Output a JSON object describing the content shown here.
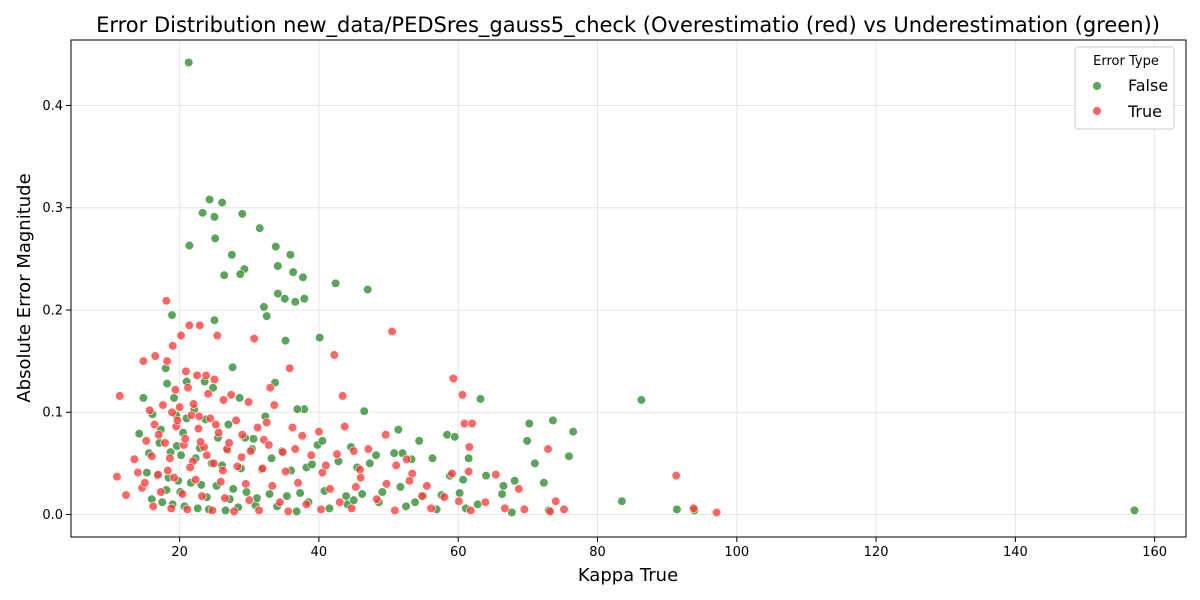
{
  "chart_data": {
    "type": "scatter",
    "title": "Error Distribution new_data/PEDSres_gauss5_check (Overestimatio (red) vs Underestimation (green))",
    "xlabel": "Kappa True",
    "ylabel": "Absolute Error Magnitude",
    "xlim": [
      4.4,
      164.5
    ],
    "ylim": [
      -0.022,
      0.464
    ],
    "xticks": [
      20,
      40,
      60,
      80,
      100,
      120,
      140,
      160
    ],
    "yticks": [
      0.0,
      0.1,
      0.2,
      0.3,
      0.4
    ],
    "xtick_labels": [
      "20",
      "40",
      "60",
      "80",
      "100",
      "120",
      "140",
      "160"
    ],
    "ytick_labels": [
      "0.0",
      "0.1",
      "0.2",
      "0.3",
      "0.4"
    ],
    "grid": true,
    "legend": {
      "title": "Error Type",
      "placement": "top-right",
      "entries": [
        "False",
        "True"
      ]
    },
    "series": [
      {
        "name": "False",
        "color": "#2e8b2e",
        "points": [
          [
            21.3,
            0.442
          ],
          [
            24.3,
            0.308
          ],
          [
            26.1,
            0.305
          ],
          [
            23.3,
            0.295
          ],
          [
            25.0,
            0.291
          ],
          [
            29.0,
            0.294
          ],
          [
            31.5,
            0.28
          ],
          [
            25.1,
            0.27
          ],
          [
            21.4,
            0.263
          ],
          [
            33.8,
            0.262
          ],
          [
            27.5,
            0.254
          ],
          [
            35.9,
            0.254
          ],
          [
            34.1,
            0.243
          ],
          [
            29.3,
            0.24
          ],
          [
            28.7,
            0.235
          ],
          [
            26.4,
            0.234
          ],
          [
            36.3,
            0.237
          ],
          [
            37.7,
            0.232
          ],
          [
            42.4,
            0.226
          ],
          [
            47.0,
            0.22
          ],
          [
            34.1,
            0.216
          ],
          [
            35.1,
            0.211
          ],
          [
            37.9,
            0.211
          ],
          [
            36.6,
            0.208
          ],
          [
            32.1,
            0.203
          ],
          [
            32.5,
            0.194
          ],
          [
            18.9,
            0.195
          ],
          [
            25.0,
            0.19
          ],
          [
            40.1,
            0.173
          ],
          [
            35.2,
            0.17
          ],
          [
            27.6,
            0.144
          ],
          [
            18.0,
            0.143
          ],
          [
            21.0,
            0.13
          ],
          [
            23.6,
            0.13
          ],
          [
            18.2,
            0.128
          ],
          [
            33.7,
            0.129
          ],
          [
            28.6,
            0.114
          ],
          [
            24.8,
            0.124
          ],
          [
            14.8,
            0.114
          ],
          [
            19.2,
            0.114
          ],
          [
            22.1,
            0.103
          ],
          [
            37.9,
            0.103
          ],
          [
            46.5,
            0.101
          ],
          [
            63.2,
            0.113
          ],
          [
            86.3,
            0.112
          ],
          [
            16.1,
            0.098
          ],
          [
            19.5,
            0.097
          ],
          [
            21.0,
            0.094
          ],
          [
            23.7,
            0.093
          ],
          [
            27.0,
            0.088
          ],
          [
            32.3,
            0.096
          ],
          [
            36.9,
            0.103
          ],
          [
            14.2,
            0.079
          ],
          [
            17.3,
            0.083
          ],
          [
            20.5,
            0.08
          ],
          [
            25.5,
            0.075
          ],
          [
            29.4,
            0.075
          ],
          [
            30.6,
            0.074
          ],
          [
            34.7,
            0.062
          ],
          [
            39.8,
            0.068
          ],
          [
            40.5,
            0.072
          ],
          [
            44.6,
            0.066
          ],
          [
            48.2,
            0.058
          ],
          [
            52.0,
            0.06
          ],
          [
            54.4,
            0.072
          ],
          [
            58.4,
            0.078
          ],
          [
            59.5,
            0.076
          ],
          [
            70.2,
            0.089
          ],
          [
            73.6,
            0.092
          ],
          [
            76.5,
            0.081
          ],
          [
            69.9,
            0.072
          ],
          [
            71.0,
            0.05
          ],
          [
            75.9,
            0.057
          ],
          [
            51.4,
            0.083
          ],
          [
            15.6,
            0.06
          ],
          [
            18.7,
            0.061
          ],
          [
            20.2,
            0.058
          ],
          [
            22.3,
            0.055
          ],
          [
            24.6,
            0.05
          ],
          [
            26.1,
            0.048
          ],
          [
            28.8,
            0.045
          ],
          [
            31.8,
            0.044
          ],
          [
            36.0,
            0.043
          ],
          [
            38.2,
            0.046
          ],
          [
            42.8,
            0.052
          ],
          [
            45.5,
            0.046
          ],
          [
            50.8,
            0.06
          ],
          [
            53.3,
            0.054
          ],
          [
            56.3,
            0.055
          ],
          [
            61.5,
            0.055
          ],
          [
            15.3,
            0.041
          ],
          [
            16.8,
            0.038
          ],
          [
            18.4,
            0.036
          ],
          [
            19.8,
            0.033
          ],
          [
            21.6,
            0.031
          ],
          [
            23.1,
            0.029
          ],
          [
            25.3,
            0.028
          ],
          [
            27.7,
            0.025
          ],
          [
            29.6,
            0.022
          ],
          [
            32.9,
            0.02
          ],
          [
            35.4,
            0.018
          ],
          [
            37.3,
            0.021
          ],
          [
            40.8,
            0.023
          ],
          [
            43.9,
            0.018
          ],
          [
            46.2,
            0.02
          ],
          [
            49.1,
            0.022
          ],
          [
            51.7,
            0.027
          ],
          [
            55.0,
            0.018
          ],
          [
            57.6,
            0.019
          ],
          [
            60.2,
            0.021
          ],
          [
            62.8,
            0.01
          ],
          [
            66.3,
            0.02
          ],
          [
            68.1,
            0.033
          ],
          [
            72.3,
            0.031
          ],
          [
            66.5,
            0.028
          ],
          [
            16.0,
            0.015
          ],
          [
            17.5,
            0.012
          ],
          [
            19.0,
            0.01
          ],
          [
            20.7,
            0.008
          ],
          [
            22.6,
            0.006
          ],
          [
            24.2,
            0.005
          ],
          [
            26.6,
            0.004
          ],
          [
            28.4,
            0.007
          ],
          [
            30.9,
            0.009
          ],
          [
            34.0,
            0.008
          ],
          [
            36.8,
            0.003
          ],
          [
            41.5,
            0.006
          ],
          [
            44.1,
            0.01
          ],
          [
            48.6,
            0.012
          ],
          [
            52.5,
            0.008
          ],
          [
            56.9,
            0.005
          ],
          [
            61.1,
            0.006
          ],
          [
            67.7,
            0.002
          ],
          [
            73.0,
            0.004
          ],
          [
            83.5,
            0.013
          ],
          [
            91.4,
            0.005
          ],
          [
            93.9,
            0.004
          ],
          [
            157.1,
            0.004
          ],
          [
            17.1,
            0.07
          ],
          [
            19.6,
            0.067
          ],
          [
            22.9,
            0.065
          ],
          [
            26.9,
            0.063
          ],
          [
            30.4,
            0.064
          ],
          [
            33.2,
            0.055
          ],
          [
            39.0,
            0.049
          ],
          [
            47.3,
            0.05
          ],
          [
            58.8,
            0.038
          ],
          [
            64.0,
            0.038
          ],
          [
            18.1,
            0.024
          ],
          [
            20.1,
            0.022
          ],
          [
            23.9,
            0.017
          ],
          [
            27.2,
            0.015
          ],
          [
            31.1,
            0.016
          ],
          [
            38.5,
            0.012
          ],
          [
            45.0,
            0.014
          ],
          [
            53.8,
            0.012
          ],
          [
            60.7,
            0.034
          ]
        ]
      },
      {
        "name": "True",
        "color": "#ff3b3b",
        "points": [
          [
            18.1,
            0.209
          ],
          [
            20.2,
            0.175
          ],
          [
            21.4,
            0.185
          ],
          [
            22.9,
            0.185
          ],
          [
            25.4,
            0.175
          ],
          [
            30.7,
            0.172
          ],
          [
            50.5,
            0.179
          ],
          [
            19.0,
            0.165
          ],
          [
            16.5,
            0.155
          ],
          [
            42.2,
            0.156
          ],
          [
            14.8,
            0.15
          ],
          [
            18.2,
            0.15
          ],
          [
            35.8,
            0.143
          ],
          [
            20.9,
            0.14
          ],
          [
            22.5,
            0.136
          ],
          [
            23.8,
            0.136
          ],
          [
            25.0,
            0.132
          ],
          [
            59.3,
            0.133
          ],
          [
            11.4,
            0.116
          ],
          [
            19.4,
            0.122
          ],
          [
            21.2,
            0.124
          ],
          [
            24.1,
            0.118
          ],
          [
            27.4,
            0.117
          ],
          [
            33.0,
            0.124
          ],
          [
            43.4,
            0.116
          ],
          [
            60.6,
            0.117
          ],
          [
            17.6,
            0.107
          ],
          [
            20.0,
            0.105
          ],
          [
            22.0,
            0.108
          ],
          [
            26.3,
            0.112
          ],
          [
            29.9,
            0.11
          ],
          [
            33.6,
            0.107
          ],
          [
            15.7,
            0.102
          ],
          [
            18.9,
            0.1
          ],
          [
            21.7,
            0.097
          ],
          [
            24.4,
            0.094
          ],
          [
            28.1,
            0.092
          ],
          [
            32.5,
            0.09
          ],
          [
            36.2,
            0.085
          ],
          [
            43.7,
            0.086
          ],
          [
            49.6,
            0.078
          ],
          [
            60.9,
            0.089
          ],
          [
            62.0,
            0.089
          ],
          [
            16.4,
            0.088
          ],
          [
            19.5,
            0.086
          ],
          [
            22.7,
            0.084
          ],
          [
            25.6,
            0.08
          ],
          [
            29.0,
            0.078
          ],
          [
            32.1,
            0.073
          ],
          [
            37.6,
            0.077
          ],
          [
            40.0,
            0.081
          ],
          [
            45.0,
            0.062
          ],
          [
            61.6,
            0.066
          ],
          [
            15.2,
            0.072
          ],
          [
            17.9,
            0.07
          ],
          [
            20.6,
            0.068
          ],
          [
            23.5,
            0.066
          ],
          [
            26.8,
            0.064
          ],
          [
            30.2,
            0.062
          ],
          [
            34.8,
            0.061
          ],
          [
            38.9,
            0.058
          ],
          [
            42.6,
            0.059
          ],
          [
            47.1,
            0.064
          ],
          [
            52.6,
            0.054
          ],
          [
            13.5,
            0.054
          ],
          [
            16.0,
            0.057
          ],
          [
            18.6,
            0.055
          ],
          [
            21.9,
            0.052
          ],
          [
            24.9,
            0.05
          ],
          [
            28.3,
            0.047
          ],
          [
            31.9,
            0.045
          ],
          [
            35.2,
            0.042
          ],
          [
            40.5,
            0.041
          ],
          [
            45.9,
            0.044
          ],
          [
            53.4,
            0.04
          ],
          [
            65.4,
            0.039
          ],
          [
            72.9,
            0.064
          ],
          [
            91.3,
            0.038
          ],
          [
            11.0,
            0.037
          ],
          [
            14.0,
            0.041
          ],
          [
            16.9,
            0.039
          ],
          [
            19.2,
            0.036
          ],
          [
            22.3,
            0.034
          ],
          [
            25.9,
            0.032
          ],
          [
            29.5,
            0.03
          ],
          [
            33.3,
            0.028
          ],
          [
            37.0,
            0.031
          ],
          [
            41.6,
            0.025
          ],
          [
            45.3,
            0.027
          ],
          [
            49.7,
            0.03
          ],
          [
            53.0,
            0.033
          ],
          [
            59.1,
            0.04
          ],
          [
            61.5,
            0.042
          ],
          [
            68.7,
            0.025
          ],
          [
            12.3,
            0.019
          ],
          [
            14.6,
            0.026
          ],
          [
            17.3,
            0.022
          ],
          [
            20.4,
            0.02
          ],
          [
            23.2,
            0.018
          ],
          [
            26.5,
            0.016
          ],
          [
            30.0,
            0.014
          ],
          [
            34.4,
            0.012
          ],
          [
            38.2,
            0.01
          ],
          [
            43.0,
            0.012
          ],
          [
            48.3,
            0.015
          ],
          [
            54.8,
            0.018
          ],
          [
            60.1,
            0.013
          ],
          [
            74.0,
            0.013
          ],
          [
            16.2,
            0.008
          ],
          [
            18.8,
            0.006
          ],
          [
            21.1,
            0.005
          ],
          [
            24.7,
            0.004
          ],
          [
            27.8,
            0.003
          ],
          [
            31.4,
            0.004
          ],
          [
            35.6,
            0.003
          ],
          [
            40.3,
            0.005
          ],
          [
            44.7,
            0.006
          ],
          [
            50.9,
            0.004
          ],
          [
            56.1,
            0.006
          ],
          [
            61.8,
            0.004
          ],
          [
            66.7,
            0.006
          ],
          [
            69.5,
            0.005
          ],
          [
            73.2,
            0.003
          ],
          [
            75.2,
            0.005
          ],
          [
            93.8,
            0.006
          ],
          [
            97.1,
            0.002
          ],
          [
            15.0,
            0.031
          ],
          [
            18.3,
            0.043
          ],
          [
            21.5,
            0.046
          ],
          [
            23.9,
            0.058
          ],
          [
            26.2,
            0.043
          ],
          [
            28.9,
            0.056
          ],
          [
            32.8,
            0.068
          ],
          [
            36.6,
            0.064
          ],
          [
            46.0,
            0.036
          ],
          [
            55.5,
            0.028
          ],
          [
            19.7,
            0.092
          ],
          [
            22.8,
            0.096
          ],
          [
            25.2,
            0.088
          ],
          [
            17.0,
            0.078
          ],
          [
            20.8,
            0.074
          ],
          [
            23.0,
            0.071
          ],
          [
            27.1,
            0.07
          ],
          [
            31.2,
            0.085
          ],
          [
            41.0,
            0.048
          ],
          [
            51.1,
            0.048
          ],
          [
            58.0,
            0.017
          ],
          [
            63.9,
            0.012
          ]
        ]
      }
    ]
  }
}
